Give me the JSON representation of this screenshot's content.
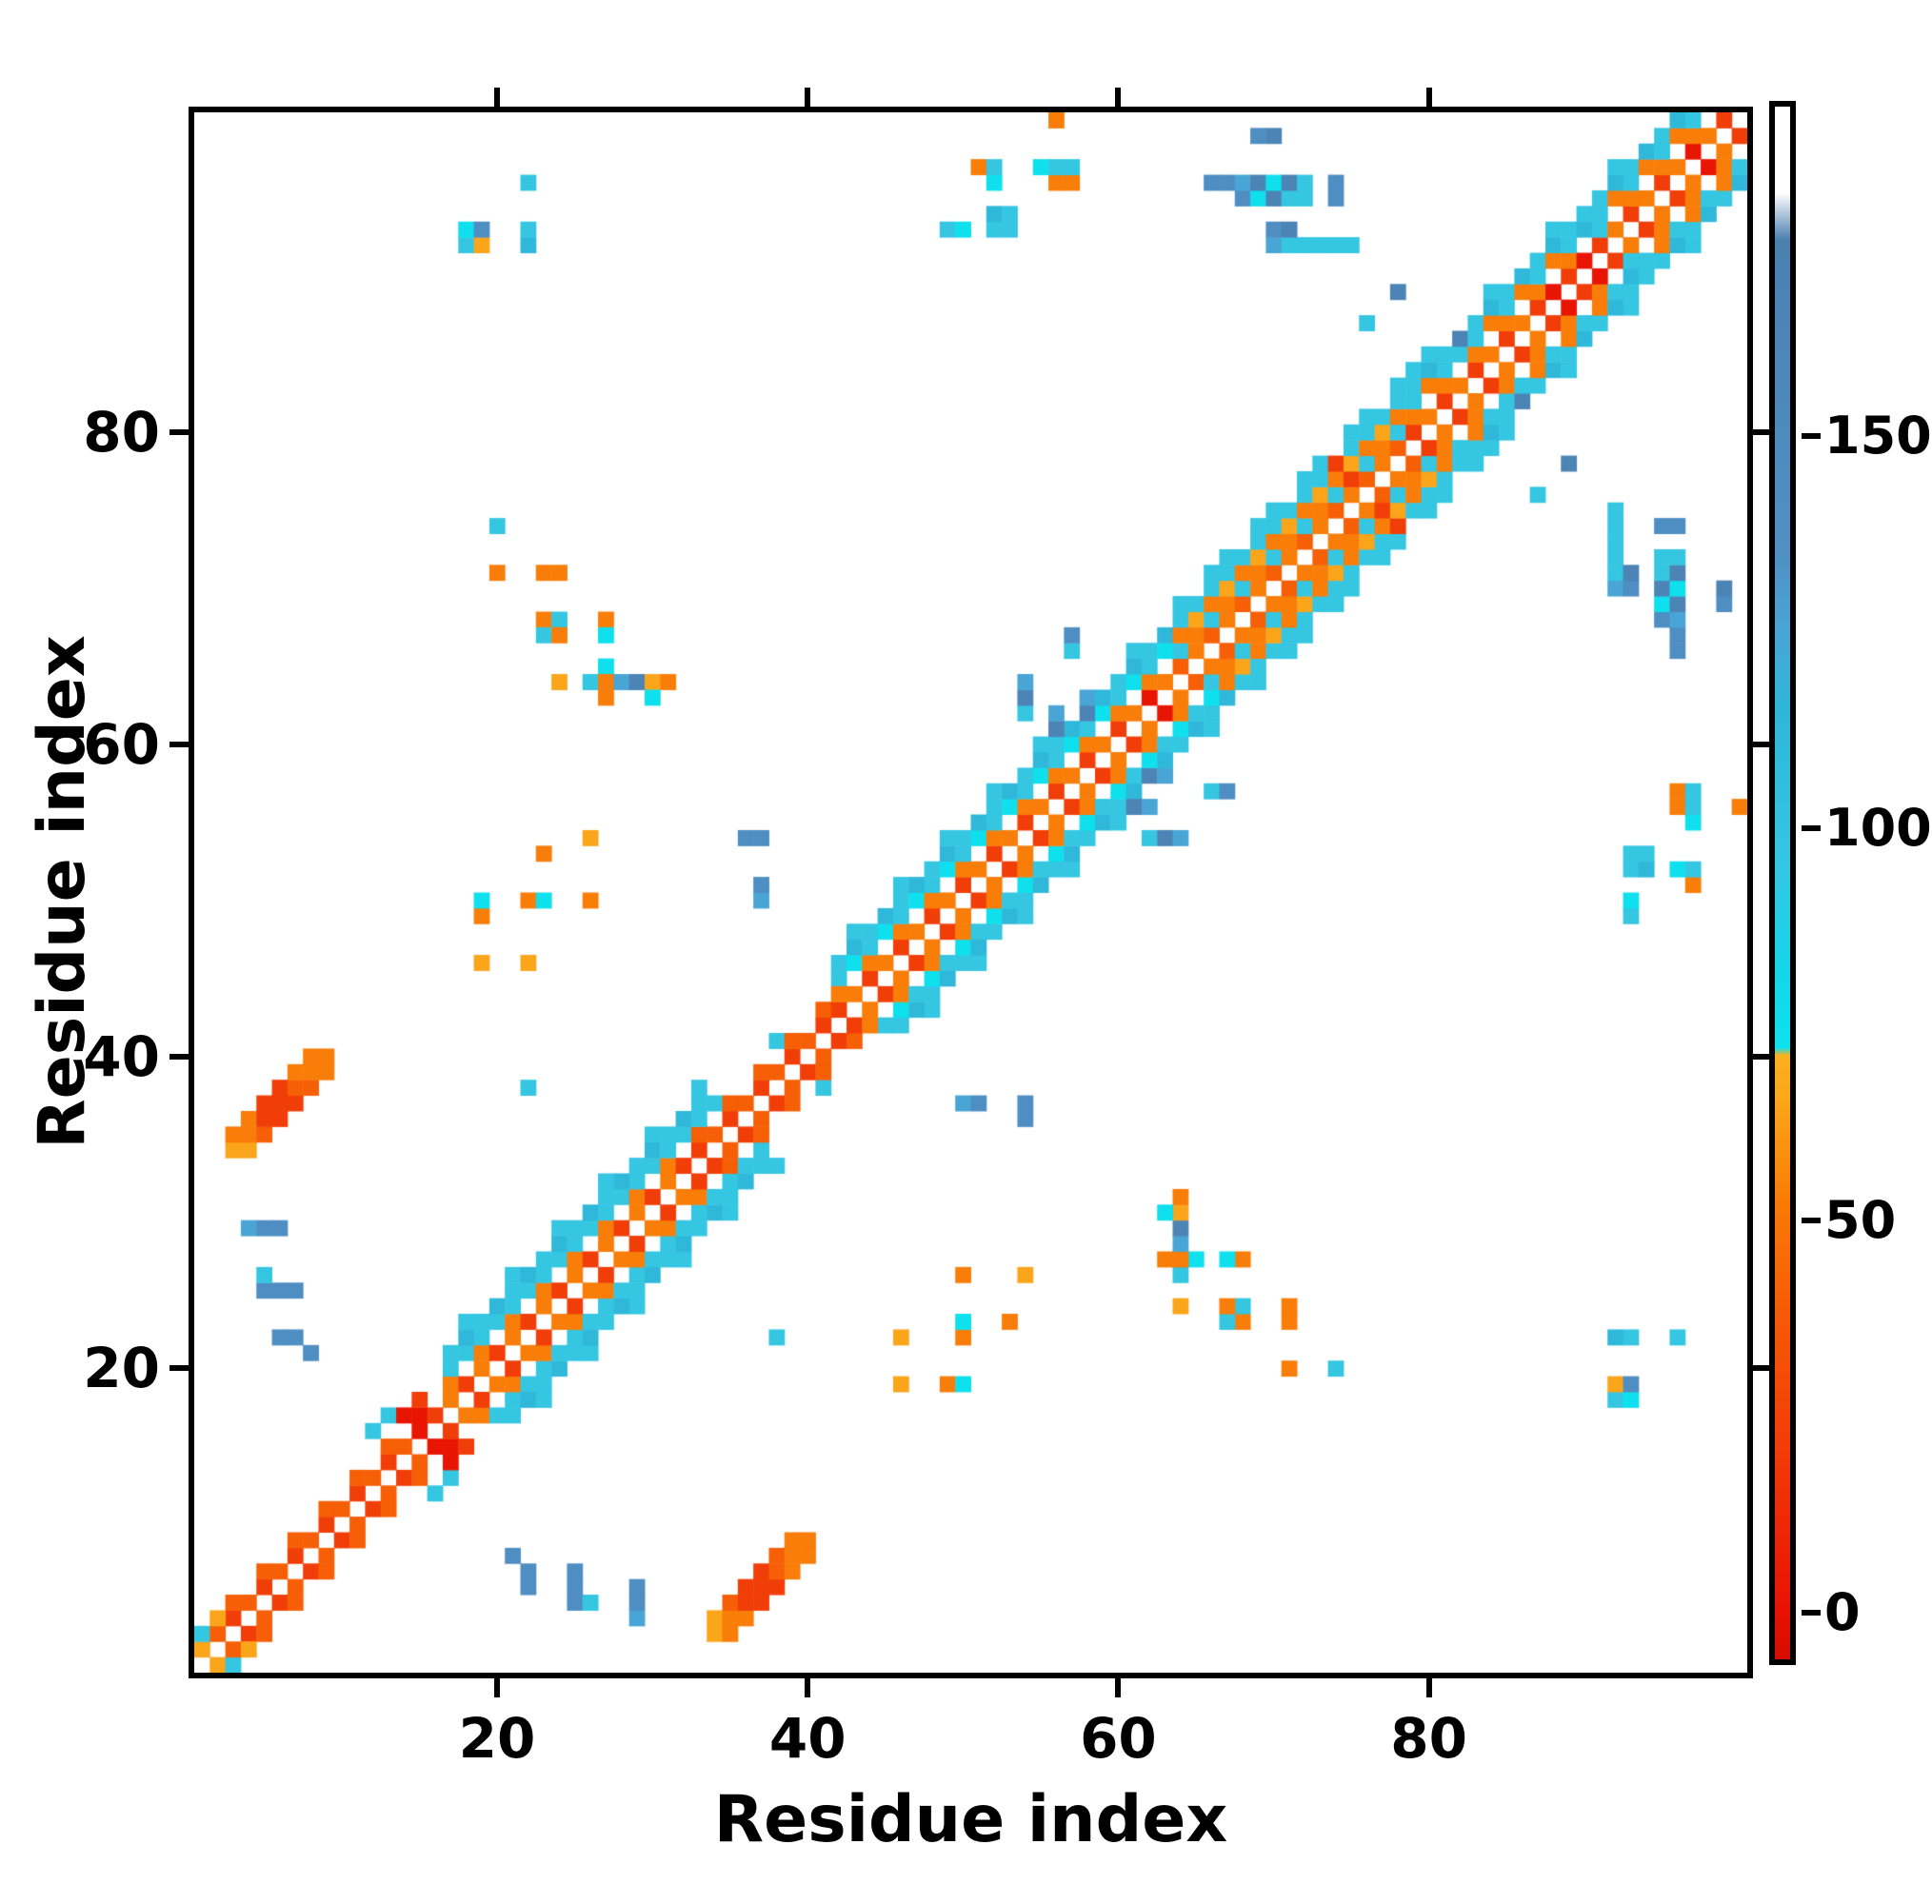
{
  "chart_data": {
    "type": "heatmap",
    "title": "",
    "xlabel": "Residue index",
    "ylabel": "Residue index",
    "n_residues": 100,
    "x_ticks": [
      20,
      40,
      60,
      80
    ],
    "y_ticks": [
      20,
      40,
      60,
      80
    ],
    "x_range": [
      0.5,
      100.5
    ],
    "y_range": [
      0.5,
      100.5
    ],
    "grid": false,
    "symmetric": true,
    "background_value_color": "#ffffff",
    "colorbar": {
      "ticks": [
        0,
        50,
        100,
        150
      ],
      "vmin": -6,
      "vmax": 192,
      "stops": [
        [
          -6,
          "#d40d00"
        ],
        [
          0,
          "#e81102"
        ],
        [
          20,
          "#f13a08"
        ],
        [
          38,
          "#f55a06"
        ],
        [
          52,
          "#f97a07"
        ],
        [
          66,
          "#fba81c"
        ],
        [
          71,
          "#fbb01e"
        ],
        [
          72,
          "#0ee1ee"
        ],
        [
          82,
          "#15d5e8"
        ],
        [
          95,
          "#35c6e2"
        ],
        [
          115,
          "#2eb6d8"
        ],
        [
          125,
          "#49a5d5"
        ],
        [
          135,
          "#5090c4"
        ],
        [
          175,
          "#4b80b0"
        ],
        [
          181,
          "#ffffff"
        ],
        [
          192,
          "#ffffff"
        ]
      ]
    },
    "palette_values": {
      "deepred": 2,
      "red": 22,
      "redorange": 40,
      "orange": 53,
      "amber": 65,
      "brightcyan": 73,
      "cyan": 95,
      "teal": 112,
      "cyansteel": 125,
      "steel": 140,
      "steeldark": 165
    },
    "band_segments": [
      {
        "from": 1,
        "to": 15,
        "offsets": {
          "1": [
            "red",
            "redorange"
          ],
          "2": [
            "redorange",
            "none"
          ]
        }
      },
      {
        "from": 15,
        "to": 17,
        "offsets": {
          "1": [
            "deepred",
            "red"
          ],
          "2": [
            "red",
            "none"
          ],
          "3": [
            "cyan",
            "none"
          ]
        }
      },
      {
        "from": 17,
        "to": 33,
        "offsets": {
          "1": [
            "orange",
            "red"
          ],
          "2": [
            "orange",
            "none"
          ],
          "3": [
            "cyan",
            "cyan"
          ],
          "4": [
            "cyan",
            "teal"
          ],
          "5": [
            "none",
            "cyan",
            "none"
          ]
        }
      },
      {
        "from": 33,
        "to": 42,
        "offsets": {
          "1": [
            "red",
            "redorange"
          ],
          "2": [
            "redorange",
            "none"
          ],
          "3": [
            "none",
            "cyan",
            "none",
            "none"
          ]
        }
      },
      {
        "from": 42,
        "to": 64,
        "offsets": {
          "1": [
            "red",
            "orange"
          ],
          "2": [
            "orange",
            "none"
          ],
          "3": [
            "cyan",
            "brightcyan"
          ],
          "4": [
            "cyan",
            "teal"
          ],
          "5": [
            "none",
            "cyan",
            "none"
          ]
        }
      },
      {
        "from": 64,
        "to": 79,
        "offsets": {
          "1": [
            "redorange",
            "orange"
          ],
          "2": [
            "cyan",
            "orange"
          ],
          "3": [
            "orange",
            "amber"
          ],
          "4": [
            "cyan",
            "cyan"
          ],
          "5": [
            "cyan",
            "none",
            "cyan"
          ]
        }
      },
      {
        "from": 79,
        "to": 100,
        "offsets": {
          "1": [
            "red",
            "orange"
          ],
          "2": [
            "orange",
            "none"
          ],
          "3": [
            "cyan",
            "orange"
          ],
          "4": [
            "cyan",
            "teal"
          ],
          "5": [
            "none",
            "cyan",
            "none",
            "none"
          ]
        }
      }
    ],
    "blob_cells": [
      [
        3,
        34,
        "amber"
      ],
      [
        4,
        34,
        "amber"
      ],
      [
        3,
        35,
        "orange"
      ],
      [
        4,
        35,
        "orange"
      ],
      [
        4,
        36,
        "orange"
      ],
      [
        5,
        35,
        "redorange"
      ],
      [
        5,
        36,
        "red"
      ],
      [
        5,
        37,
        "red"
      ],
      [
        6,
        36,
        "red"
      ],
      [
        6,
        37,
        "red"
      ],
      [
        6,
        38,
        "red"
      ],
      [
        7,
        37,
        "red"
      ],
      [
        7,
        38,
        "redorange"
      ],
      [
        7,
        39,
        "orange"
      ],
      [
        8,
        38,
        "redorange"
      ],
      [
        8,
        39,
        "orange"
      ],
      [
        8,
        40,
        "orange"
      ],
      [
        9,
        39,
        "orange"
      ],
      [
        9,
        40,
        "orange"
      ]
    ],
    "scatter_cells": [
      [
        1,
        2,
        "amber"
      ],
      [
        1,
        3,
        "cyan"
      ],
      [
        2,
        4,
        "amber"
      ],
      [
        12,
        16,
        "cyan"
      ],
      [
        13,
        17,
        "cyan"
      ],
      [
        14,
        17,
        "deepred"
      ],
      [
        15,
        17,
        "deepred"
      ],
      [
        15,
        18,
        "red"
      ],
      [
        6,
        22,
        "steel"
      ],
      [
        7,
        22,
        "steel"
      ],
      [
        8,
        21,
        "steel"
      ],
      [
        5,
        25,
        "steel"
      ],
      [
        6,
        25,
        "steel"
      ],
      [
        7,
        25,
        "steel"
      ],
      [
        5,
        26,
        "cyan"
      ],
      [
        4,
        29,
        "cyansteel"
      ],
      [
        5,
        29,
        "steel"
      ],
      [
        6,
        29,
        "steel"
      ],
      [
        22,
        38,
        "cyan"
      ],
      [
        20,
        74,
        "cyan"
      ],
      [
        20,
        71,
        "orange"
      ],
      [
        23,
        71,
        "orange"
      ],
      [
        24,
        71,
        "orange"
      ],
      [
        23,
        68,
        "orange"
      ],
      [
        24,
        68,
        "cyan"
      ],
      [
        23,
        67,
        "cyan"
      ],
      [
        24,
        67,
        "orange"
      ],
      [
        27,
        68,
        "orange"
      ],
      [
        27,
        67,
        "brightcyan"
      ],
      [
        27,
        65,
        "brightcyan"
      ],
      [
        24,
        64,
        "amber"
      ],
      [
        26,
        64,
        "cyan"
      ],
      [
        27,
        64,
        "orange"
      ],
      [
        28,
        64,
        "cyansteel"
      ],
      [
        29,
        64,
        "steeldark"
      ],
      [
        30,
        64,
        "amber"
      ],
      [
        31,
        64,
        "orange"
      ],
      [
        27,
        63,
        "orange"
      ],
      [
        30,
        63,
        "brightcyan"
      ],
      [
        26,
        54,
        "amber"
      ],
      [
        23,
        53,
        "orange"
      ],
      [
        19,
        49,
        "orange"
      ],
      [
        19,
        50,
        "brightcyan"
      ],
      [
        22,
        50,
        "orange"
      ],
      [
        23,
        50,
        "brightcyan"
      ],
      [
        26,
        50,
        "orange"
      ],
      [
        19,
        46,
        "amber"
      ],
      [
        22,
        46,
        "amber"
      ],
      [
        36,
        54,
        "steel"
      ],
      [
        37,
        54,
        "steel"
      ],
      [
        37,
        50,
        "cyansteel"
      ],
      [
        37,
        51,
        "steel"
      ],
      [
        18,
        92,
        "cyan"
      ],
      [
        18,
        93,
        "brightcyan"
      ],
      [
        19,
        92,
        "amber"
      ],
      [
        19,
        93,
        "steel"
      ],
      [
        22,
        92,
        "teal"
      ],
      [
        22,
        93,
        "cyan"
      ],
      [
        22,
        96,
        "cyan"
      ],
      [
        49,
        93,
        "cyan"
      ],
      [
        50,
        93,
        "brightcyan"
      ],
      [
        52,
        93,
        "cyan"
      ],
      [
        52,
        94,
        "teal"
      ],
      [
        53,
        93,
        "cyan"
      ],
      [
        53,
        94,
        "cyan"
      ],
      [
        51,
        97,
        "orange"
      ],
      [
        52,
        96,
        "brightcyan"
      ],
      [
        52,
        97,
        "cyan"
      ],
      [
        55,
        97,
        "brightcyan"
      ],
      [
        56,
        96,
        "orange"
      ],
      [
        56,
        97,
        "cyan"
      ],
      [
        56,
        100,
        "orange"
      ],
      [
        57,
        96,
        "orange"
      ],
      [
        57,
        97,
        "cyan"
      ],
      [
        66,
        96,
        "steel"
      ],
      [
        67,
        96,
        "steel"
      ],
      [
        68,
        95,
        "steel"
      ],
      [
        68,
        96,
        "cyansteel"
      ],
      [
        69,
        95,
        "brightcyan"
      ],
      [
        69,
        96,
        "steeldark"
      ],
      [
        69,
        99,
        "steel"
      ],
      [
        70,
        92,
        "cyansteel"
      ],
      [
        70,
        93,
        "steel"
      ],
      [
        70,
        95,
        "steeldark"
      ],
      [
        70,
        96,
        "brightcyan"
      ],
      [
        70,
        99,
        "steeldark"
      ],
      [
        71,
        92,
        "cyan"
      ],
      [
        71,
        93,
        "steeldark"
      ],
      [
        71,
        95,
        "cyan"
      ],
      [
        71,
        96,
        "steeldark"
      ],
      [
        72,
        92,
        "cyan"
      ],
      [
        73,
        92,
        "cyan"
      ],
      [
        72,
        95,
        "cyan"
      ],
      [
        72,
        96,
        "cyan"
      ],
      [
        74,
        92,
        "cyan"
      ],
      [
        75,
        92,
        "cyan"
      ],
      [
        74,
        95,
        "steel"
      ],
      [
        74,
        96,
        "steel"
      ],
      [
        76,
        87,
        "cyan"
      ],
      [
        78,
        89,
        "steeldark"
      ],
      [
        82,
        85,
        "cyan"
      ],
      [
        82,
        86,
        "steeldark"
      ]
    ],
    "overlay_cells": [
      [
        54,
        62,
        "cyan"
      ],
      [
        54,
        63,
        "steeldark"
      ],
      [
        54,
        64,
        "cyansteel"
      ],
      [
        56,
        60,
        "cyan"
      ],
      [
        56,
        61,
        "steeldark"
      ],
      [
        56,
        62,
        "cyansteel"
      ],
      [
        57,
        66,
        "cyan"
      ],
      [
        57,
        67,
        "steel"
      ],
      [
        58,
        62,
        "steeldark"
      ],
      [
        58,
        63,
        "cyansteel"
      ],
      [
        62,
        63,
        "deepred"
      ],
      [
        74,
        78,
        "red"
      ],
      [
        75,
        77,
        "red"
      ],
      [
        87,
        88,
        "red"
      ],
      [
        88,
        89,
        "deepred"
      ],
      [
        90,
        91,
        "deepred"
      ],
      [
        97,
        98,
        "deepred"
      ],
      [
        99,
        100,
        "red"
      ],
      [
        90,
        93,
        "teal"
      ],
      [
        91,
        93,
        "cyan"
      ],
      [
        90,
        94,
        "cyan"
      ],
      [
        91,
        94,
        "cyan"
      ]
    ]
  },
  "layout_colors": {
    "frame": "#000000",
    "background": "#ffffff"
  }
}
